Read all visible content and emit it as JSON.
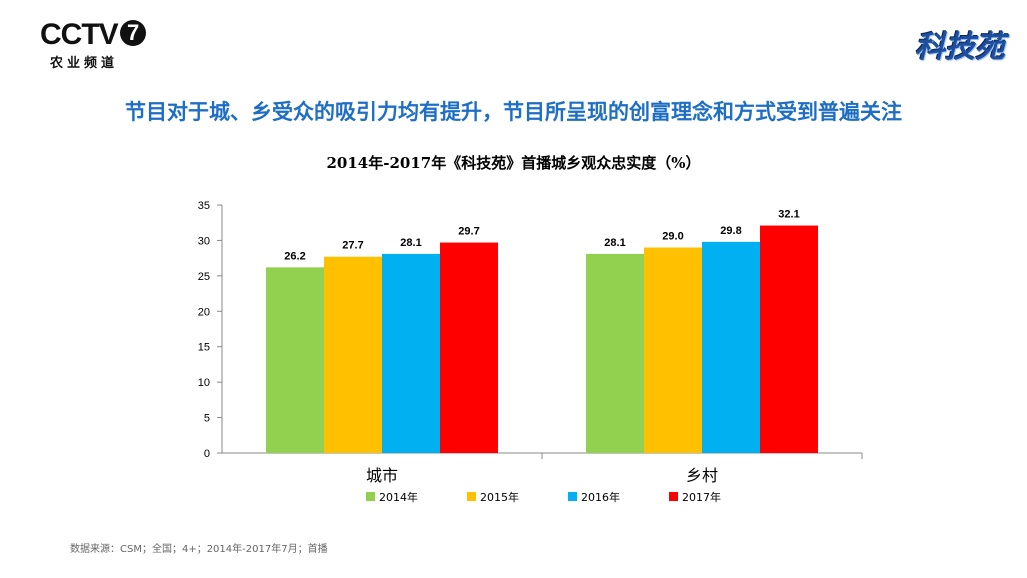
{
  "logo": {
    "main": "CCTV",
    "number": "7",
    "sub": "农业频道"
  },
  "brand": "科技苑",
  "headline": "节目对于城、乡受众的吸引力均有提升，节目所呈现的创富理念和方式受到普遍关注",
  "colors": {
    "2014年": "#92d050",
    "2015年": "#ffc000",
    "2016年": "#00b0f0",
    "2017年": "#ff0000"
  },
  "chart_data": {
    "type": "bar",
    "title": "2014年-2017年《科技苑》首播城乡观众忠实度（%）",
    "categories": [
      "城市",
      "乡村"
    ],
    "series": [
      {
        "name": "2014年",
        "values": [
          26.2,
          28.1
        ],
        "labels": [
          "26.2",
          "28.1"
        ]
      },
      {
        "name": "2015年",
        "values": [
          27.7,
          29.0
        ],
        "labels": [
          "27.7",
          "29.0"
        ]
      },
      {
        "name": "2016年",
        "values": [
          28.1,
          29.8
        ],
        "labels": [
          "28.1",
          "29.8"
        ]
      },
      {
        "name": "2017年",
        "values": [
          29.7,
          32.1
        ],
        "labels": [
          "29.7",
          "32.1"
        ]
      }
    ],
    "ylim": [
      0,
      35
    ],
    "yticks": [
      0,
      5,
      10,
      15,
      20,
      25,
      30,
      35
    ],
    "grid": false,
    "legend": "bottom"
  },
  "source": "数据来源：CSM；全国；4+；2014年-2017年7月；首播"
}
